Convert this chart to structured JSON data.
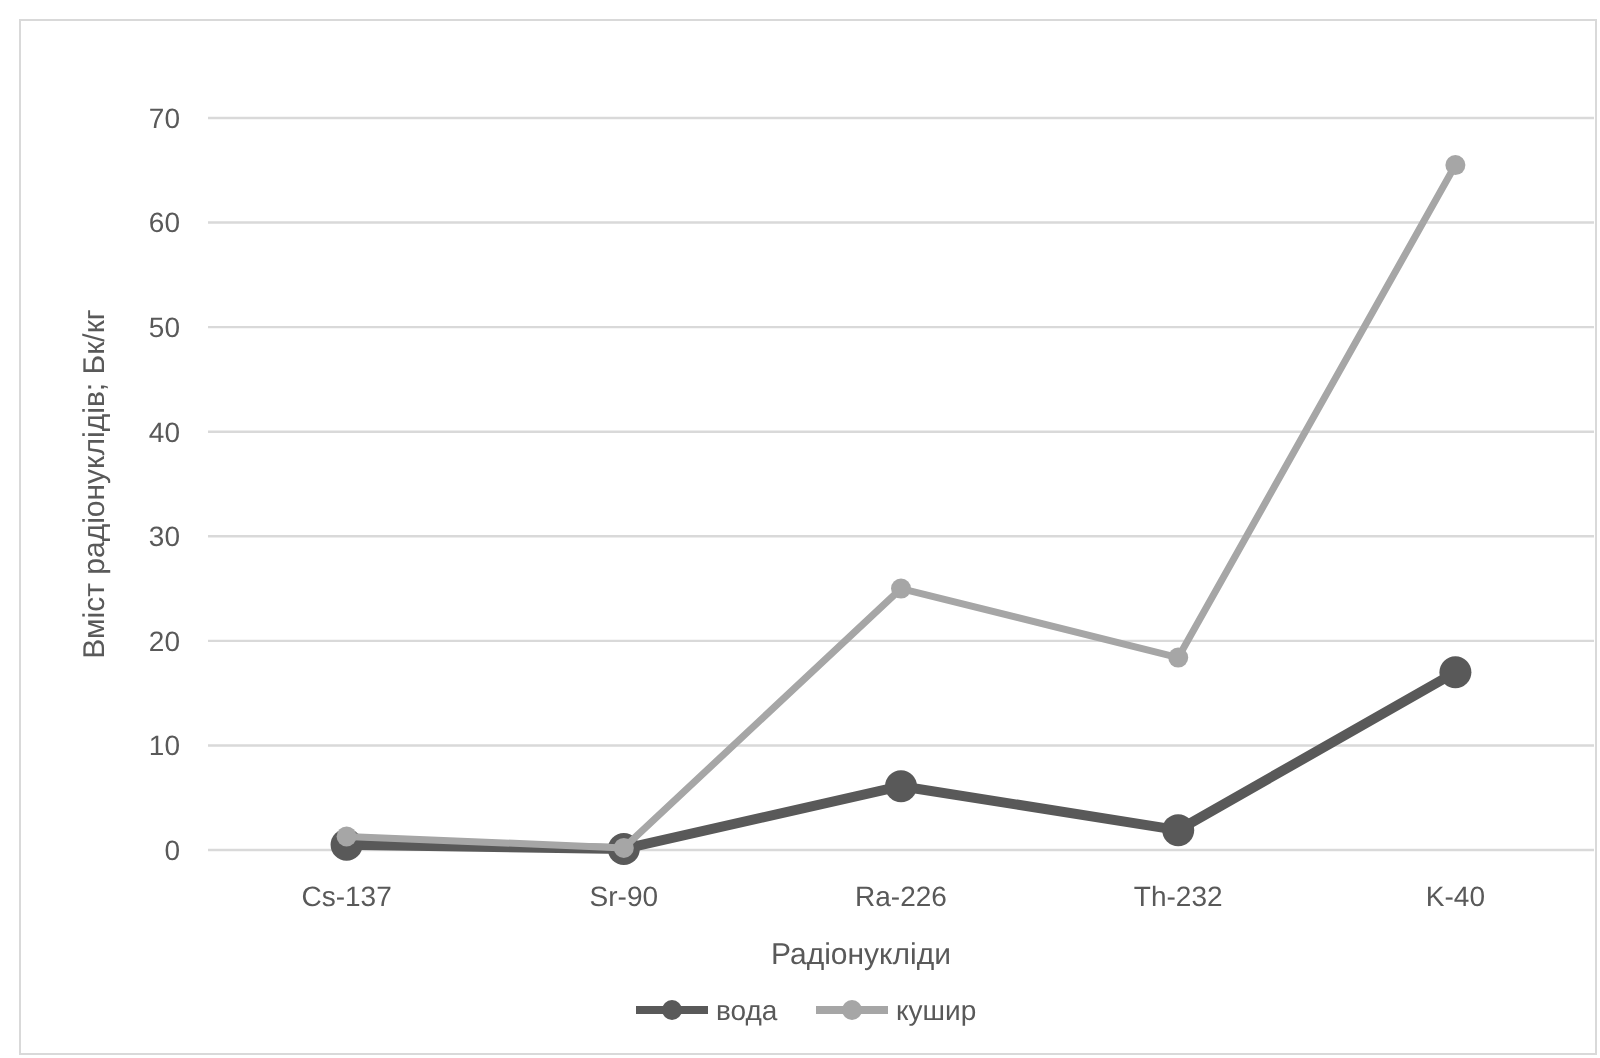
{
  "chart_data": {
    "type": "line",
    "xlabel": "Радіонукліди",
    "ylabel": "Вміст радіонуклідів; Бк/кг",
    "categories": [
      "Cs-137",
      "Sr-90",
      "Ra-226",
      "Th-232",
      "K-40"
    ],
    "series": [
      {
        "name": "вода",
        "color": "#595959",
        "values": [
          0.5,
          0.1,
          6.1,
          1.9,
          17
        ]
      },
      {
        "name": "кушир",
        "color": "#a6a6a6",
        "values": [
          1.3,
          0.2,
          25,
          18.4,
          65.5
        ]
      }
    ],
    "ylim": [
      0,
      70
    ],
    "yticks": [
      0,
      10,
      20,
      30,
      40,
      50,
      60,
      70
    ],
    "grid": "y",
    "legend": "bottom",
    "marker": "circle",
    "line_style": "solid"
  }
}
